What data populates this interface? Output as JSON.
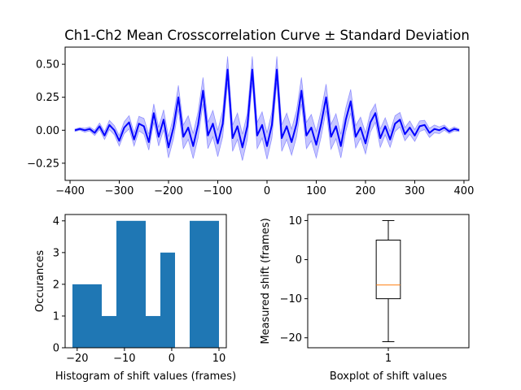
{
  "chart_data": [
    {
      "type": "line",
      "title": "Ch1-Ch2 Mean Crosscorrelation Curve ± Standard Deviation",
      "xlabel": "",
      "ylabel": "",
      "xlim": [
        -410,
        410
      ],
      "ylim": [
        -0.38,
        0.63
      ],
      "xticks": [
        -400,
        -300,
        -200,
        -100,
        0,
        100,
        200,
        300,
        400
      ],
      "xtick_labels": [
        "−400",
        "−300",
        "−200",
        "−100",
        "0",
        "100",
        "200",
        "300",
        "400"
      ],
      "yticks": [
        -0.25,
        0,
        0.25,
        0.5
      ],
      "ytick_labels": [
        "−0.25",
        "0.00",
        "0.25",
        "0.50"
      ],
      "line_color": "#0000ff",
      "band_color": "#0000ff",
      "band_opacity": 0.22,
      "series": [
        {
          "x": [
            -390,
            -380,
            -370,
            -360,
            -350,
            -340,
            -330,
            -320,
            -310,
            -300,
            -290,
            -280,
            -270,
            -260,
            -250,
            -240,
            -230,
            -220,
            -210,
            -200,
            -190,
            -180,
            -170,
            -160,
            -150,
            -140,
            -130,
            -120,
            -110,
            -100,
            -90,
            -80,
            -70,
            -60,
            -50,
            -40,
            -30,
            -20,
            -10,
            0,
            10,
            20,
            30,
            40,
            50,
            60,
            70,
            80,
            90,
            100,
            110,
            120,
            130,
            140,
            150,
            160,
            170,
            180,
            190,
            200,
            210,
            220,
            230,
            240,
            250,
            260,
            270,
            280,
            290,
            300,
            310,
            320,
            330,
            340,
            350,
            360,
            370,
            380,
            390
          ],
          "y": [
            0.0,
            0.01,
            0.0,
            0.01,
            -0.02,
            0.03,
            -0.04,
            0.04,
            0.0,
            -0.08,
            0.02,
            0.06,
            -0.07,
            0.05,
            0.03,
            -0.09,
            0.13,
            -0.05,
            0.08,
            -0.13,
            0.02,
            0.25,
            -0.05,
            0.02,
            -0.12,
            0.04,
            0.3,
            -0.04,
            0.05,
            -0.1,
            0.05,
            0.46,
            -0.06,
            0.03,
            -0.13,
            0.03,
            0.46,
            -0.04,
            0.04,
            -0.12,
            0.04,
            0.46,
            -0.06,
            0.03,
            -0.09,
            0.05,
            0.3,
            -0.04,
            0.02,
            -0.11,
            0.05,
            0.25,
            -0.05,
            0.03,
            -0.12,
            0.08,
            0.22,
            -0.05,
            0.02,
            -0.1,
            0.06,
            0.13,
            -0.06,
            0.03,
            -0.07,
            0.05,
            0.08,
            -0.03,
            0.02,
            -0.04,
            0.03,
            0.04,
            -0.02,
            0.01,
            0.0,
            0.02,
            -0.01,
            0.01,
            0.0
          ],
          "std": [
            0.01,
            0.01,
            0.015,
            0.015,
            0.02,
            0.025,
            0.03,
            0.035,
            0.035,
            0.04,
            0.045,
            0.05,
            0.05,
            0.055,
            0.06,
            0.06,
            0.07,
            0.07,
            0.075,
            0.08,
            0.085,
            0.09,
            0.09,
            0.09,
            0.095,
            0.1,
            0.1,
            0.1,
            0.1,
            0.1,
            0.1,
            0.1,
            0.1,
            0.1,
            0.1,
            0.1,
            0.1,
            0.1,
            0.1,
            0.1,
            0.1,
            0.1,
            0.1,
            0.1,
            0.1,
            0.1,
            0.1,
            0.1,
            0.1,
            0.1,
            0.1,
            0.1,
            0.095,
            0.095,
            0.09,
            0.09,
            0.09,
            0.085,
            0.08,
            0.08,
            0.075,
            0.07,
            0.07,
            0.065,
            0.06,
            0.06,
            0.055,
            0.05,
            0.05,
            0.045,
            0.04,
            0.035,
            0.035,
            0.03,
            0.025,
            0.02,
            0.015,
            0.015,
            0.01
          ]
        }
      ]
    },
    {
      "type": "bar",
      "title": "",
      "xlabel": "Histogram of shift values (frames)",
      "ylabel": "Occurances",
      "xlim": [
        -22.55,
        11.55
      ],
      "ylim": [
        0,
        4.2
      ],
      "xticks": [
        -20,
        -10,
        0,
        10
      ],
      "xtick_labels": [
        "−20",
        "−10",
        "0",
        "10"
      ],
      "yticks": [
        0,
        1,
        2,
        3,
        4
      ],
      "ytick_labels": [
        "0",
        "1",
        "2",
        "3",
        "4"
      ],
      "bar_color": "#1f77b4",
      "bin_edges": [
        -21,
        -17.9,
        -14.8,
        -11.7,
        -8.6,
        -5.5,
        -2.4,
        0.7,
        3.8,
        6.9,
        10
      ],
      "values": [
        2,
        2,
        1,
        4,
        4,
        1,
        3,
        0,
        4,
        4
      ]
    },
    {
      "type": "boxplot",
      "title": "",
      "xlabel": "Boxplot of shift values",
      "ylabel": "Measured shift (frames)",
      "xlim": [
        0.5,
        1.5
      ],
      "ylim": [
        -22.55,
        11.55
      ],
      "xticks": [
        1
      ],
      "xtick_labels": [
        "1"
      ],
      "yticks": [
        -20,
        -10,
        0,
        10
      ],
      "ytick_labels": [
        "−20",
        "−10",
        "0",
        "10"
      ],
      "median_color": "#ff7f0e",
      "box": {
        "min": -21,
        "q1": -10,
        "median": -6.5,
        "q3": 5,
        "max": 10
      }
    }
  ]
}
